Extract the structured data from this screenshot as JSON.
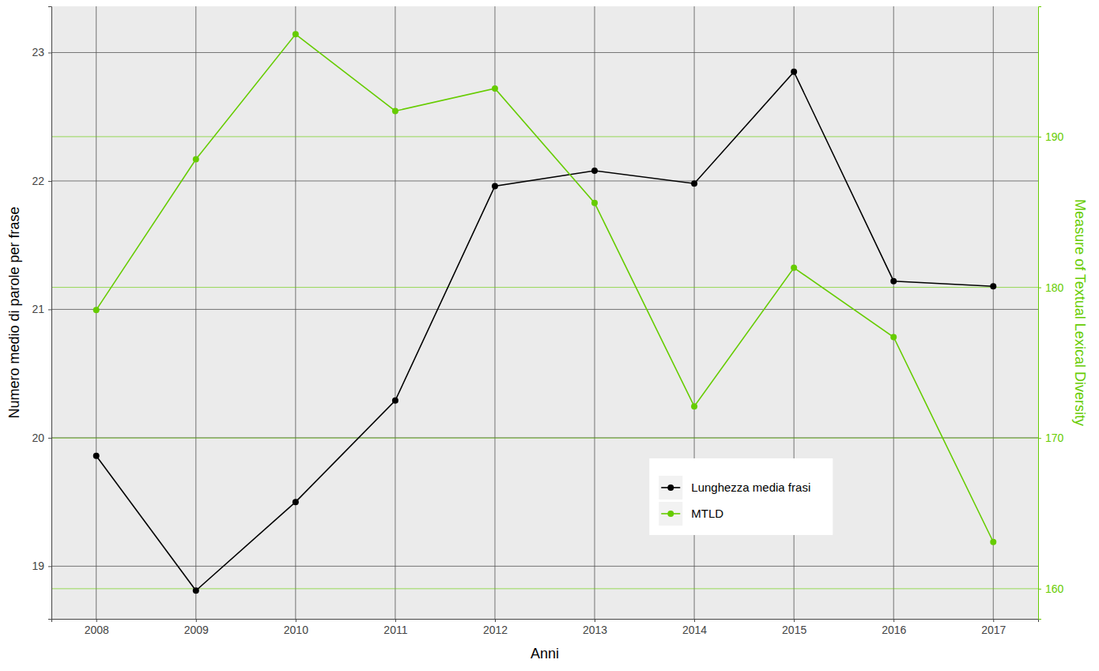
{
  "chart_data": {
    "type": "line",
    "x_label": "Anni",
    "y_label": "Numero medio di parole per frase",
    "y2_label": "Measure of Textual Lexical Diversity",
    "x": [
      2008,
      2009,
      2010,
      2011,
      2012,
      2013,
      2014,
      2015,
      2016,
      2017
    ],
    "xlim": [
      2007.55,
      2017.45
    ],
    "xticks": [
      2008,
      2009,
      2010,
      2011,
      2012,
      2013,
      2014,
      2015,
      2016,
      2017
    ],
    "ylim": [
      18.59,
      23.36
    ],
    "yticks": [
      19,
      20,
      21,
      22,
      23
    ],
    "y2lim": [
      158.0,
      198.65
    ],
    "y2ticks": [
      160,
      170,
      180,
      190
    ],
    "grid": true,
    "legend": "bottom-right",
    "series": [
      {
        "name": "Lunghezza media frasi",
        "color": "#000000",
        "marker": "circle",
        "values": [
          19.86,
          18.81,
          19.5,
          20.29,
          21.96,
          22.08,
          21.98,
          22.85,
          21.22,
          21.18
        ]
      },
      {
        "name": "MTLD",
        "color": "#66cc00",
        "marker": "circle",
        "axis": "y2",
        "values": [
          178.5,
          188.5,
          196.8,
          191.7,
          193.2,
          185.6,
          172.1,
          181.3,
          176.7,
          163.1
        ]
      }
    ]
  }
}
